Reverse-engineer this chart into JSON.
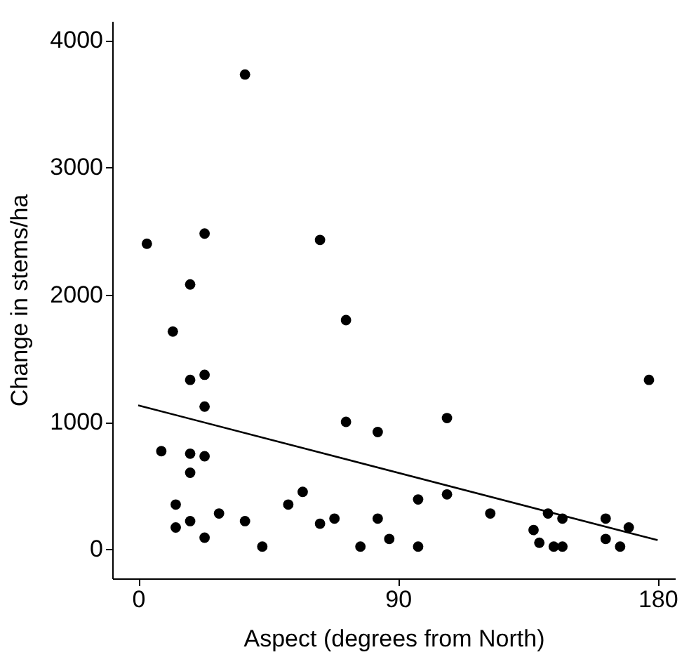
{
  "chart_data": {
    "type": "scatter",
    "xlabel": "Aspect (degrees from North)",
    "ylabel": "Change in stems/ha",
    "xlim": [
      -9,
      186
    ],
    "ylim": [
      -230,
      4150
    ],
    "xticks": [
      0,
      90,
      180
    ],
    "yticks": [
      0,
      1000,
      2000,
      3000,
      4000
    ],
    "grid": false,
    "series": [
      {
        "color": "#000000",
        "marker": "circle",
        "x": [
          3,
          12,
          18,
          23,
          37,
          63,
          72,
          18,
          23,
          23,
          72,
          83,
          8,
          18,
          23,
          18,
          13,
          13,
          18,
          23,
          28,
          37,
          43,
          52,
          57,
          63,
          68,
          77,
          83,
          87,
          97,
          97,
          107,
          107,
          122,
          137,
          139,
          142,
          144,
          147,
          147,
          162,
          162,
          167,
          170,
          177
        ],
        "values": [
          2400,
          1710,
          2080,
          2480,
          3730,
          2430,
          1800,
          1330,
          1370,
          1120,
          1000,
          920,
          770,
          750,
          730,
          600,
          350,
          170,
          220,
          90,
          280,
          220,
          20,
          350,
          450,
          200,
          240,
          20,
          240,
          80,
          390,
          20,
          1030,
          430,
          280,
          150,
          50,
          280,
          20,
          20,
          240,
          240,
          80,
          20,
          170,
          1330
        ]
      },
      {
        "type": "line",
        "color": "#000000",
        "x": [
          0,
          180
        ],
        "values": [
          1130,
          70
        ]
      }
    ]
  }
}
